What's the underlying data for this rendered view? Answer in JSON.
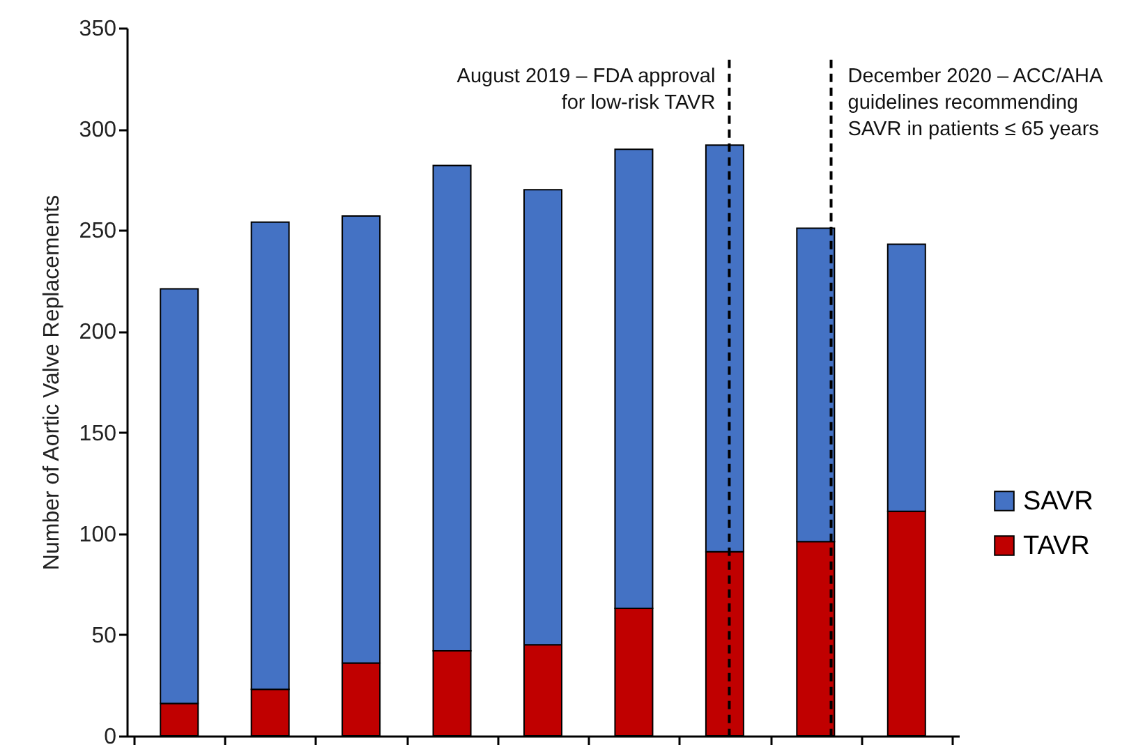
{
  "chart_data": {
    "type": "bar",
    "stacked": true,
    "ylabel": "Number of Aortic Valve Replacements",
    "categories": [
      null,
      null,
      null,
      null,
      null,
      null,
      null,
      null,
      null
    ],
    "series": [
      {
        "name": "TAVR",
        "color": "#c00000",
        "values": [
          16,
          23,
          36,
          42,
          45,
          63,
          91,
          96,
          111
        ]
      },
      {
        "name": "SAVR",
        "color": "#4472c4",
        "values": [
          205,
          231,
          221,
          240,
          225,
          227,
          201,
          155,
          132
        ]
      }
    ],
    "ylim": [
      0,
      350
    ],
    "yticks": [
      0,
      50,
      100,
      150,
      200,
      250,
      300,
      350
    ],
    "grid": false,
    "legend": "right",
    "annotations": [
      "August 2019 – FDA approval\nfor low-risk TAVR",
      "December 2020 – ACC/AHA\nguidelines recommending\nSAVR in patients ≤ 65 years"
    ]
  }
}
